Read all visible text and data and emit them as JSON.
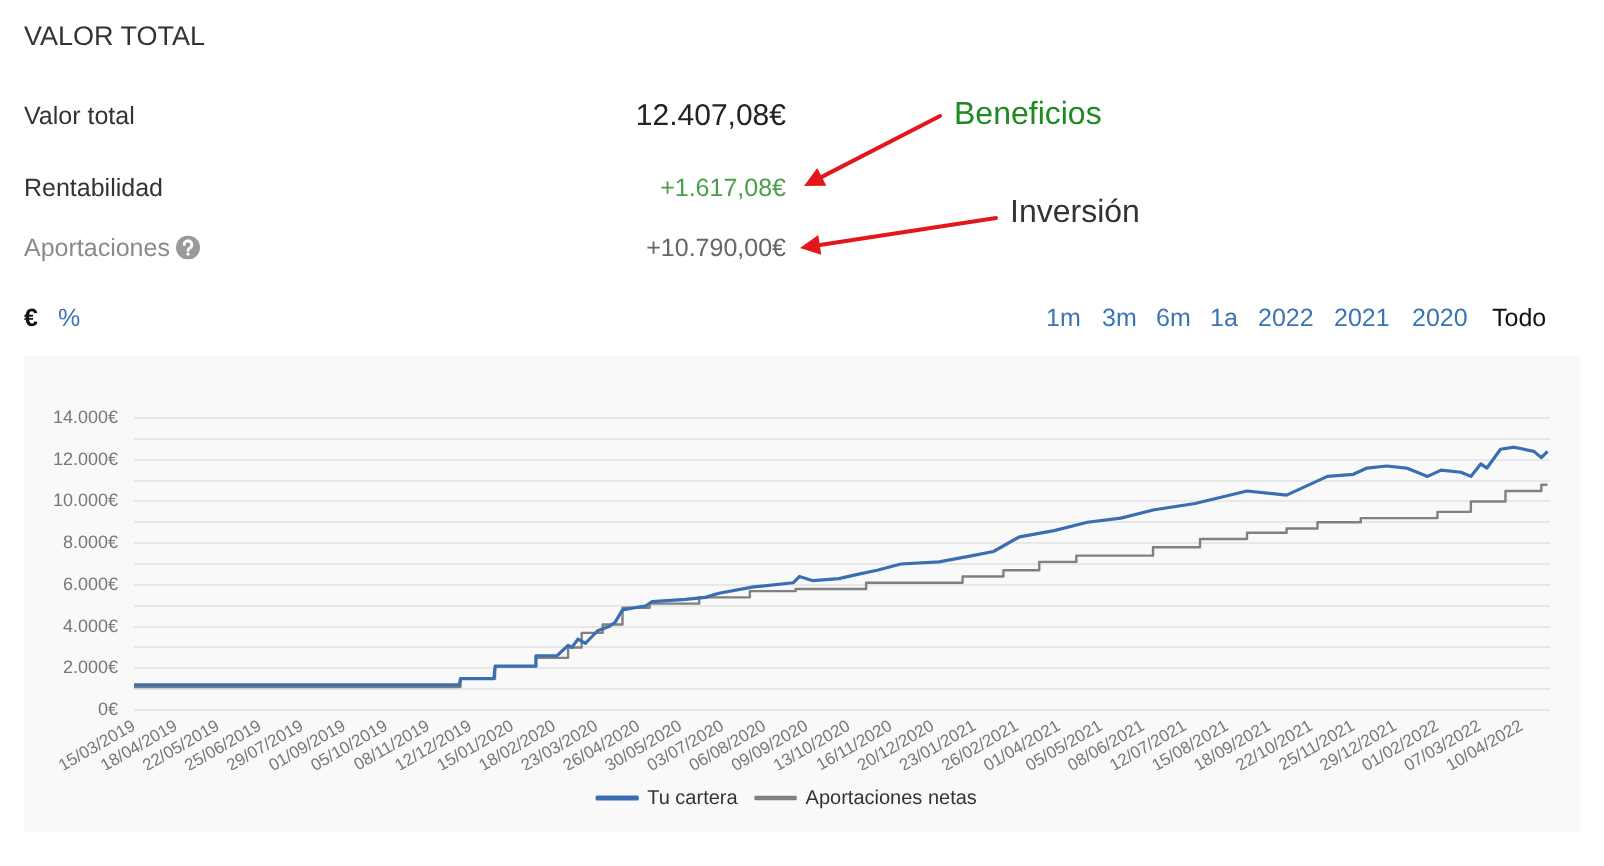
{
  "chart_data": {
    "type": "line",
    "title": "VALOR TOTAL",
    "annotations": [
      "Valor total",
      "12.407,08€",
      "Rentabilidad",
      "+1.617,08€",
      "Aportaciones",
      "+10.790,00€",
      "Beneficios",
      "Inversión",
      "€",
      "%",
      "1m",
      "3m",
      "6m",
      "1a",
      "2022",
      "2021",
      "2020",
      "Todo"
    ],
    "series": [
      {
        "name": "Tu cartera",
        "type": "line",
        "color": "#3b6eb0",
        "x": [
          "2019-03-15",
          "2019-07-01",
          "2019-10-01",
          "2019-12-03",
          "2019-12-04",
          "2019-12-31",
          "2020-01-01",
          "2020-02-02",
          "2020-02-03",
          "2020-02-20",
          "2020-02-29",
          "2020-03-03",
          "2020-03-08",
          "2020-03-14",
          "2020-03-19",
          "2020-03-24",
          "2020-04-02",
          "2020-04-07",
          "2020-04-13",
          "2020-05-02",
          "2020-05-07",
          "2020-06-03",
          "2020-06-19",
          "2020-06-30",
          "2020-07-28",
          "2020-08-29",
          "2020-09-03",
          "2020-09-14",
          "2020-10-05",
          "2020-10-20",
          "2020-11-05",
          "2020-11-24",
          "2020-12-25",
          "2021-01-21",
          "2021-02-07",
          "2021-02-28",
          "2021-03-28",
          "2021-04-24",
          "2021-05-21",
          "2021-06-17",
          "2021-07-20",
          "2021-08-10",
          "2021-08-31",
          "2021-10-02",
          "2021-10-13",
          "2021-11-04",
          "2021-11-25",
          "2021-12-06",
          "2021-12-22",
          "2022-01-07",
          "2022-01-24",
          "2022-02-04",
          "2022-02-20",
          "2022-02-28",
          "2022-03-08",
          "2022-03-13",
          "2022-03-24",
          "2022-04-04",
          "2022-04-20",
          "2022-04-26",
          "2022-05-01"
        ],
        "values": [
          1200,
          1200,
          1200,
          1200,
          1500,
          1500,
          2100,
          2100,
          2600,
          2600,
          3100,
          3000,
          3400,
          3200,
          3500,
          3800,
          4000,
          4200,
          4800,
          5000,
          5200,
          5300,
          5400,
          5600,
          5900,
          6100,
          6400,
          6200,
          6300,
          6500,
          6700,
          7000,
          7100,
          7400,
          7600,
          8300,
          8600,
          9000,
          9200,
          9600,
          9900,
          10200,
          10500,
          10300,
          10600,
          11200,
          11300,
          11600,
          11700,
          11600,
          11200,
          11500,
          11400,
          11200,
          11800,
          11600,
          12500,
          12600,
          12400,
          12100,
          12400
        ]
      },
      {
        "name": "Aportaciones netas",
        "type": "step",
        "color": "#808080",
        "x": [
          "2019-03-15",
          "2019-12-04",
          "2020-01-01",
          "2020-02-03",
          "2020-02-29",
          "2020-03-11",
          "2020-03-28",
          "2020-04-13",
          "2020-05-05",
          "2020-06-14",
          "2020-07-25",
          "2020-08-31",
          "2020-10-27",
          "2021-01-13",
          "2021-02-15",
          "2021-03-16",
          "2021-04-15",
          "2021-06-16",
          "2021-07-24",
          "2021-08-31",
          "2021-10-02",
          "2021-10-27",
          "2021-12-01",
          "2022-02-01",
          "2022-02-28",
          "2022-03-28",
          "2022-04-26",
          "2022-05-01"
        ],
        "values": [
          1100,
          1500,
          2100,
          2500,
          3000,
          3700,
          4100,
          4900,
          5100,
          5400,
          5700,
          5800,
          6100,
          6400,
          6700,
          7100,
          7400,
          7800,
          8200,
          8500,
          8700,
          9000,
          9200,
          9500,
          10000,
          10500,
          10800,
          10800
        ]
      }
    ],
    "xlim": [
      "2019-03-15",
      "2022-05-03"
    ],
    "xticks": [
      {
        "value": "2019-03-15",
        "label": "15/03/2019"
      },
      {
        "value": "2019-04-18",
        "label": "18/04/2019"
      },
      {
        "value": "2019-05-22",
        "label": "22/05/2019"
      },
      {
        "value": "2019-06-25",
        "label": "25/06/2019"
      },
      {
        "value": "2019-07-29",
        "label": "29/07/2019"
      },
      {
        "value": "2019-09-01",
        "label": "01/09/2019"
      },
      {
        "value": "2019-10-05",
        "label": "05/10/2019"
      },
      {
        "value": "2019-11-08",
        "label": "08/11/2019"
      },
      {
        "value": "2019-12-12",
        "label": "12/12/2019"
      },
      {
        "value": "2020-01-15",
        "label": "15/01/2020"
      },
      {
        "value": "2020-02-18",
        "label": "18/02/2020"
      },
      {
        "value": "2020-03-23",
        "label": "23/03/2020"
      },
      {
        "value": "2020-04-26",
        "label": "26/04/2020"
      },
      {
        "value": "2020-05-30",
        "label": "30/05/2020"
      },
      {
        "value": "2020-07-03",
        "label": "03/07/2020"
      },
      {
        "value": "2020-08-06",
        "label": "06/08/2020"
      },
      {
        "value": "2020-09-09",
        "label": "09/09/2020"
      },
      {
        "value": "2020-10-13",
        "label": "13/10/2020"
      },
      {
        "value": "2020-11-16",
        "label": "16/11/2020"
      },
      {
        "value": "2020-12-20",
        "label": "20/12/2020"
      },
      {
        "value": "2021-01-23",
        "label": "23/01/2021"
      },
      {
        "value": "2021-02-26",
        "label": "26/02/2021"
      },
      {
        "value": "2021-04-01",
        "label": "01/04/2021"
      },
      {
        "value": "2021-05-05",
        "label": "05/05/2021"
      },
      {
        "value": "2021-06-08",
        "label": "08/06/2021"
      },
      {
        "value": "2021-07-12",
        "label": "12/07/2021"
      },
      {
        "value": "2021-08-15",
        "label": "15/08/2021"
      },
      {
        "value": "2021-09-18",
        "label": "18/09/2021"
      },
      {
        "value": "2021-10-22",
        "label": "22/10/2021"
      },
      {
        "value": "2021-11-25",
        "label": "25/11/2021"
      },
      {
        "value": "2021-12-29",
        "label": "29/12/2021"
      },
      {
        "value": "2022-02-01",
        "label": "01/02/2022"
      },
      {
        "value": "2022-03-07",
        "label": "07/03/2022"
      },
      {
        "value": "2022-04-10",
        "label": "10/04/2022"
      }
    ],
    "ylim": [
      0,
      14000
    ],
    "yticks": [
      {
        "value": 0,
        "label": "0€"
      },
      {
        "value": 1000,
        "label": null
      },
      {
        "value": 2000,
        "label": "2.000€"
      },
      {
        "value": 3000,
        "label": null
      },
      {
        "value": 4000,
        "label": "4.000€"
      },
      {
        "value": 5000,
        "label": null
      },
      {
        "value": 6000,
        "label": "6.000€"
      },
      {
        "value": 7000,
        "label": null
      },
      {
        "value": 8000,
        "label": "8.000€"
      },
      {
        "value": 9000,
        "label": null
      },
      {
        "value": 10000,
        "label": "10.000€"
      },
      {
        "value": 11000,
        "label": null
      },
      {
        "value": 12000,
        "label": "12.000€"
      },
      {
        "value": 13000,
        "label": null
      },
      {
        "value": 14000,
        "label": "14.000€"
      }
    ],
    "grid": "y",
    "legend": "bottom",
    "marker": "none",
    "line_style": "solid"
  }
}
